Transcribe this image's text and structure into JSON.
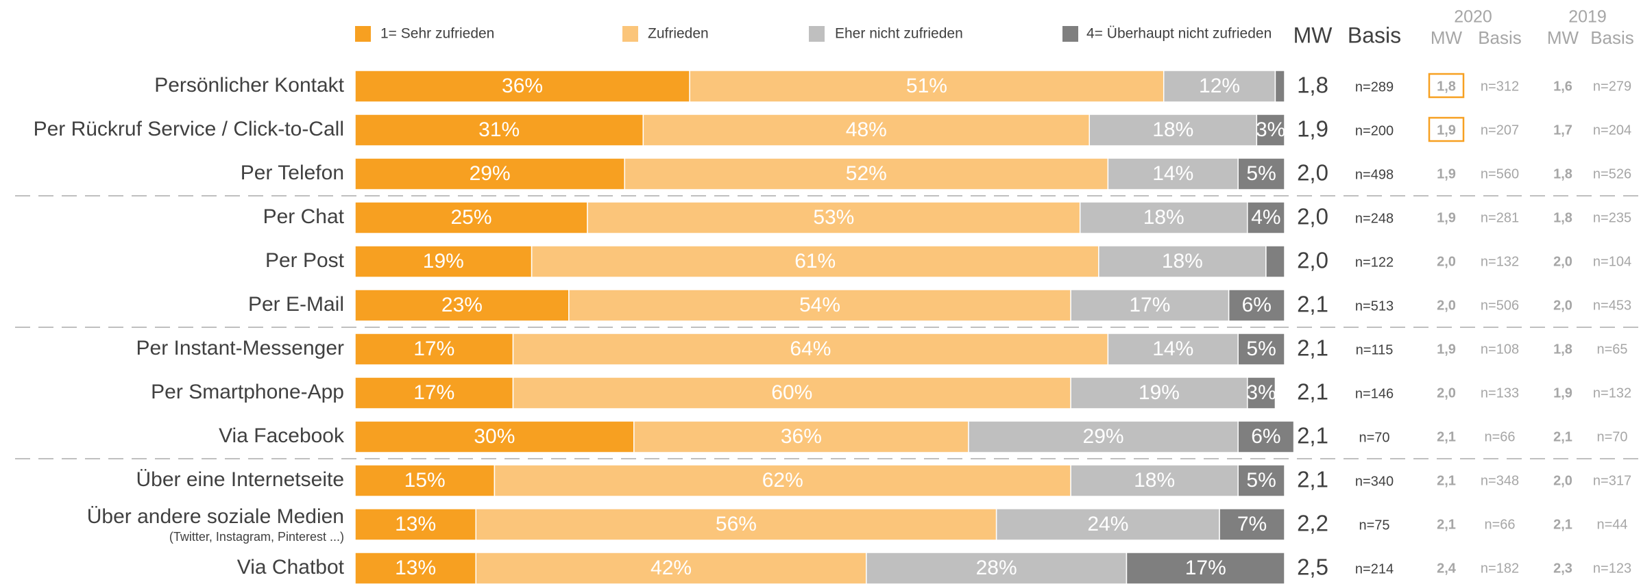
{
  "chart_data": {
    "type": "stacked-bar-horizontal",
    "categories": [
      "Persönlicher Kontakt",
      "Per Rückruf Service / Click-to-Call",
      "Per Telefon",
      "Per Chat",
      "Per Post",
      "Per E-Mail",
      "Per Instant-Messenger",
      "Per Smartphone-App",
      "Via Facebook",
      "Über eine Internetseite",
      "Über andere soziale Medien",
      "Via Chatbot"
    ],
    "category_notes": [
      null,
      null,
      null,
      null,
      null,
      null,
      null,
      null,
      null,
      null,
      "(Twitter, Instagram, Pinterest ...)",
      null
    ],
    "xlim": [
      0,
      100
    ],
    "series": [
      {
        "name": "1= Sehr zufrieden",
        "color": "#f7a021",
        "values": [
          36,
          31,
          29,
          25,
          19,
          23,
          17,
          17,
          30,
          15,
          13,
          13
        ],
        "value_labels": [
          "36%",
          "31%",
          "29%",
          "25%",
          "19%",
          "23%",
          "17%",
          "17%",
          "30%",
          "15%",
          "13%",
          "13%"
        ]
      },
      {
        "name": "Zufrieden",
        "color": "#fbc57a",
        "values": [
          51,
          48,
          52,
          53,
          61,
          54,
          64,
          60,
          36,
          62,
          56,
          42
        ],
        "value_labels": [
          "51%",
          "48%",
          "52%",
          "53%",
          "61%",
          "54%",
          "64%",
          "60%",
          "36%",
          "62%",
          "56%",
          "42%"
        ]
      },
      {
        "name": "Eher nicht zufrieden",
        "color": "#bfbfbf",
        "values": [
          12,
          18,
          14,
          18,
          18,
          17,
          14,
          19,
          29,
          18,
          24,
          28
        ],
        "value_labels": [
          "12%",
          "18%",
          "14%",
          "18%",
          "18%",
          "17%",
          "14%",
          "19%",
          "29%",
          "18%",
          "24%",
          "28%"
        ]
      },
      {
        "name": "4= Überhaupt nicht zufrieden",
        "color": "#7f7f7f",
        "values": [
          1,
          3,
          5,
          4,
          2,
          6,
          5,
          3,
          6,
          5,
          7,
          17
        ],
        "value_labels": [
          null,
          "3%",
          "5%",
          "4%",
          null,
          "6%",
          "5%",
          "3%",
          "6%",
          "5%",
          "7%",
          "17%"
        ]
      }
    ],
    "separators_after": [
      2,
      5,
      8
    ],
    "columns_header": [
      "MW",
      "Basis"
    ],
    "mw": [
      "1,8",
      "1,9",
      "2,0",
      "2,0",
      "2,0",
      "2,1",
      "2,1",
      "2,1",
      "2,1",
      "2,1",
      "2,2",
      "2,5"
    ],
    "basis": [
      "n=289",
      "n=200",
      "n=498",
      "n=248",
      "n=122",
      "n=513",
      "n=115",
      "n=146",
      "n=70",
      "n=340",
      "n=75",
      "n=214"
    ],
    "previous": [
      {
        "year": "2020",
        "header": [
          "MW",
          "Basis"
        ],
        "mw": [
          "1,8",
          "1,9",
          "1,9",
          "1,9",
          "2,0",
          "2,0",
          "1,9",
          "2,0",
          "2,1",
          "2,1",
          "2,1",
          "2,4"
        ],
        "basis": [
          "n=312",
          "n=207",
          "n=560",
          "n=281",
          "n=132",
          "n=506",
          "n=108",
          "n=133",
          "n=66",
          "n=348",
          "n=66",
          "n=182"
        ],
        "highlighted_rows": [
          0,
          1
        ]
      },
      {
        "year": "2019",
        "header": [
          "MW",
          "Basis"
        ],
        "mw": [
          "1,6",
          "1,7",
          "1,8",
          "1,8",
          "2,0",
          "2,0",
          "1,8",
          "1,9",
          "2,1",
          "2,0",
          "2,1",
          "2,3"
        ],
        "basis": [
          "n=279",
          "n=204",
          "n=526",
          "n=235",
          "n=104",
          "n=453",
          "n=65",
          "n=132",
          "n=70",
          "n=317",
          "n=44",
          "n=123"
        ],
        "highlighted_rows": []
      }
    ]
  }
}
